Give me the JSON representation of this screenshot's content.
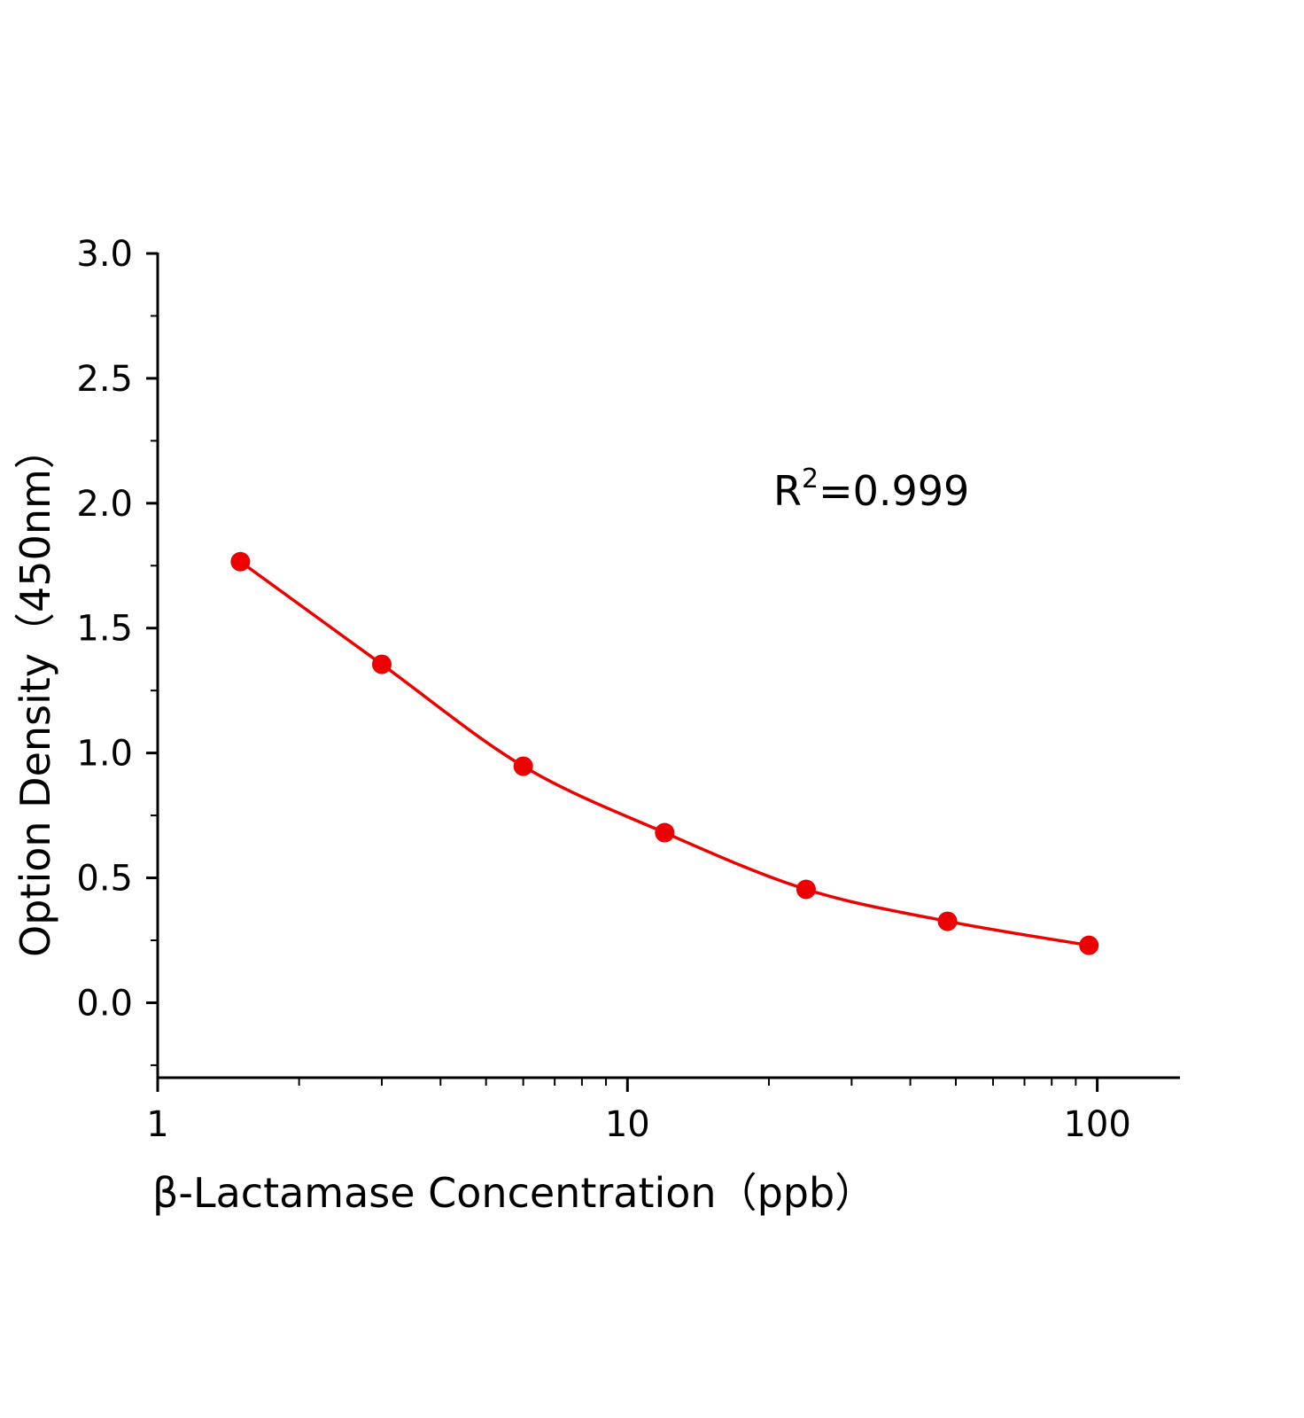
{
  "chart_data": {
    "type": "scatter",
    "title": "",
    "xlabel": "β-Lactamase  Concentration（ppb）",
    "ylabel": "Option Density（450nm）",
    "xscale": "log",
    "xlim": [
      1,
      150
    ],
    "ylim": [
      -0.3,
      3.0
    ],
    "xticks": [
      1,
      10,
      100
    ],
    "xtick_labels": [
      "1",
      "10",
      "100"
    ],
    "yticks": [
      0.0,
      0.5,
      1.0,
      1.5,
      2.0,
      2.5,
      3.0
    ],
    "ytick_labels": [
      "0.0",
      "0.5",
      "1.0",
      "1.5",
      "2.0",
      "2.5",
      "3.0"
    ],
    "grid": false,
    "series": [
      {
        "x": [
          1.5,
          3,
          6,
          12,
          24,
          48,
          96
        ],
        "y": [
          1.766,
          1.355,
          0.947,
          0.681,
          0.454,
          0.326,
          0.23
        ],
        "color": "#ee0000",
        "markers": true,
        "fit_curve": true
      }
    ],
    "annotation": {
      "text": "R",
      "sup": "2",
      "rest": "=0.999"
    }
  }
}
